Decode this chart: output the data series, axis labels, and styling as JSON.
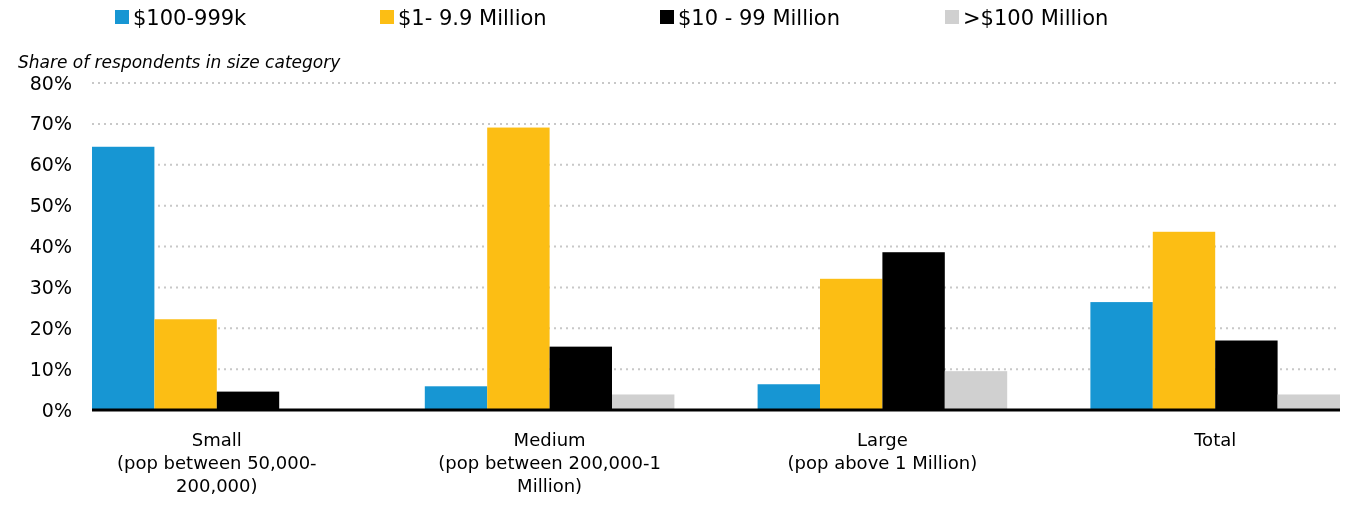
{
  "chart_data": {
    "type": "bar",
    "ylabel": "Share of respondents in size category",
    "categories": [
      "Small\n(pop between 50,000-\n200,000)",
      "Medium\n(pop between 200,000-1\nMillion)",
      "Large\n(pop above 1 Million)",
      "Total"
    ],
    "series": [
      {
        "name": "$100-999k",
        "color": "#1796d3",
        "values": [
          64.4,
          5.8,
          6.3,
          26.4
        ]
      },
      {
        "name": "$1- 9.9 Million",
        "color": "#fcbe14",
        "values": [
          22.2,
          69.1,
          32.1,
          43.6
        ]
      },
      {
        "name": "$10 - 99 Million",
        "color": "#000000",
        "values": [
          4.5,
          15.5,
          38.6,
          17.0
        ]
      },
      {
        "name": ">$100 Million",
        "color": "#d0d0d0",
        "values": [
          null,
          3.8,
          9.5,
          3.8
        ]
      }
    ],
    "ylim": [
      0,
      80
    ],
    "yticks": [
      {
        "value": 0,
        "label": "0%"
      },
      {
        "value": 10,
        "label": "10%"
      },
      {
        "value": 20,
        "label": "20%"
      },
      {
        "value": 30,
        "label": "30%"
      },
      {
        "value": 40,
        "label": "40%"
      },
      {
        "value": 50,
        "label": "50%"
      },
      {
        "value": 60,
        "label": "60%"
      },
      {
        "value": 70,
        "label": "70%"
      },
      {
        "value": 80,
        "label": "80%"
      }
    ],
    "grid": "y",
    "legend": "top"
  }
}
